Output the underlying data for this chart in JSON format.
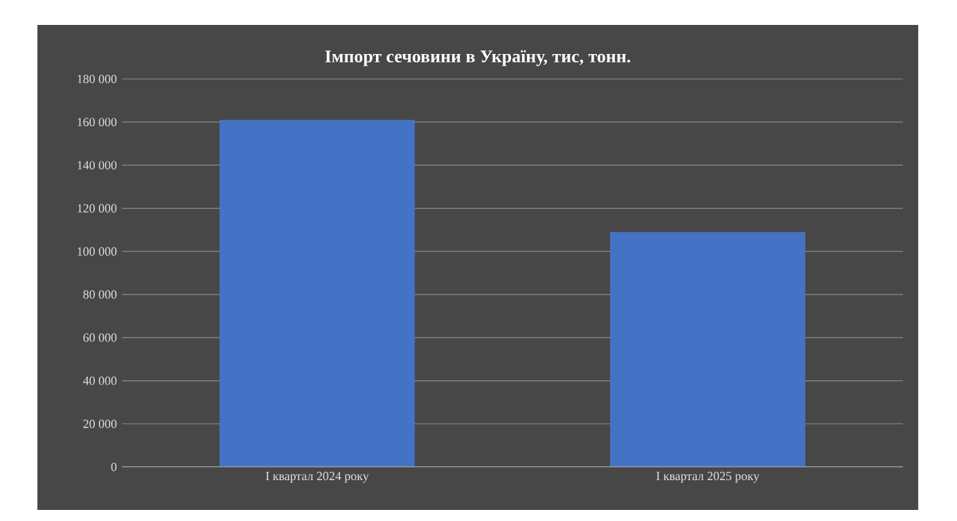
{
  "chart_data": {
    "type": "bar",
    "title": "Імпорт сечовини в Україну, тис, тонн.",
    "categories": [
      "I квартал 2024 року",
      "I квартал 2025 року"
    ],
    "values": [
      161000,
      109000
    ],
    "color": "#4472c4",
    "ylim": [
      0,
      180000
    ],
    "yticks": [
      {
        "value": 0,
        "label": "0"
      },
      {
        "value": 20000,
        "label": "20 000"
      },
      {
        "value": 40000,
        "label": "40 000"
      },
      {
        "value": 60000,
        "label": "60 000"
      },
      {
        "value": 80000,
        "label": "80 000"
      },
      {
        "value": 100000,
        "label": "100 000"
      },
      {
        "value": 120000,
        "label": "120 000"
      },
      {
        "value": 140000,
        "label": "140 000"
      },
      {
        "value": 160000,
        "label": "160 000"
      },
      {
        "value": 180000,
        "label": "180 000"
      }
    ],
    "grid": "y"
  }
}
